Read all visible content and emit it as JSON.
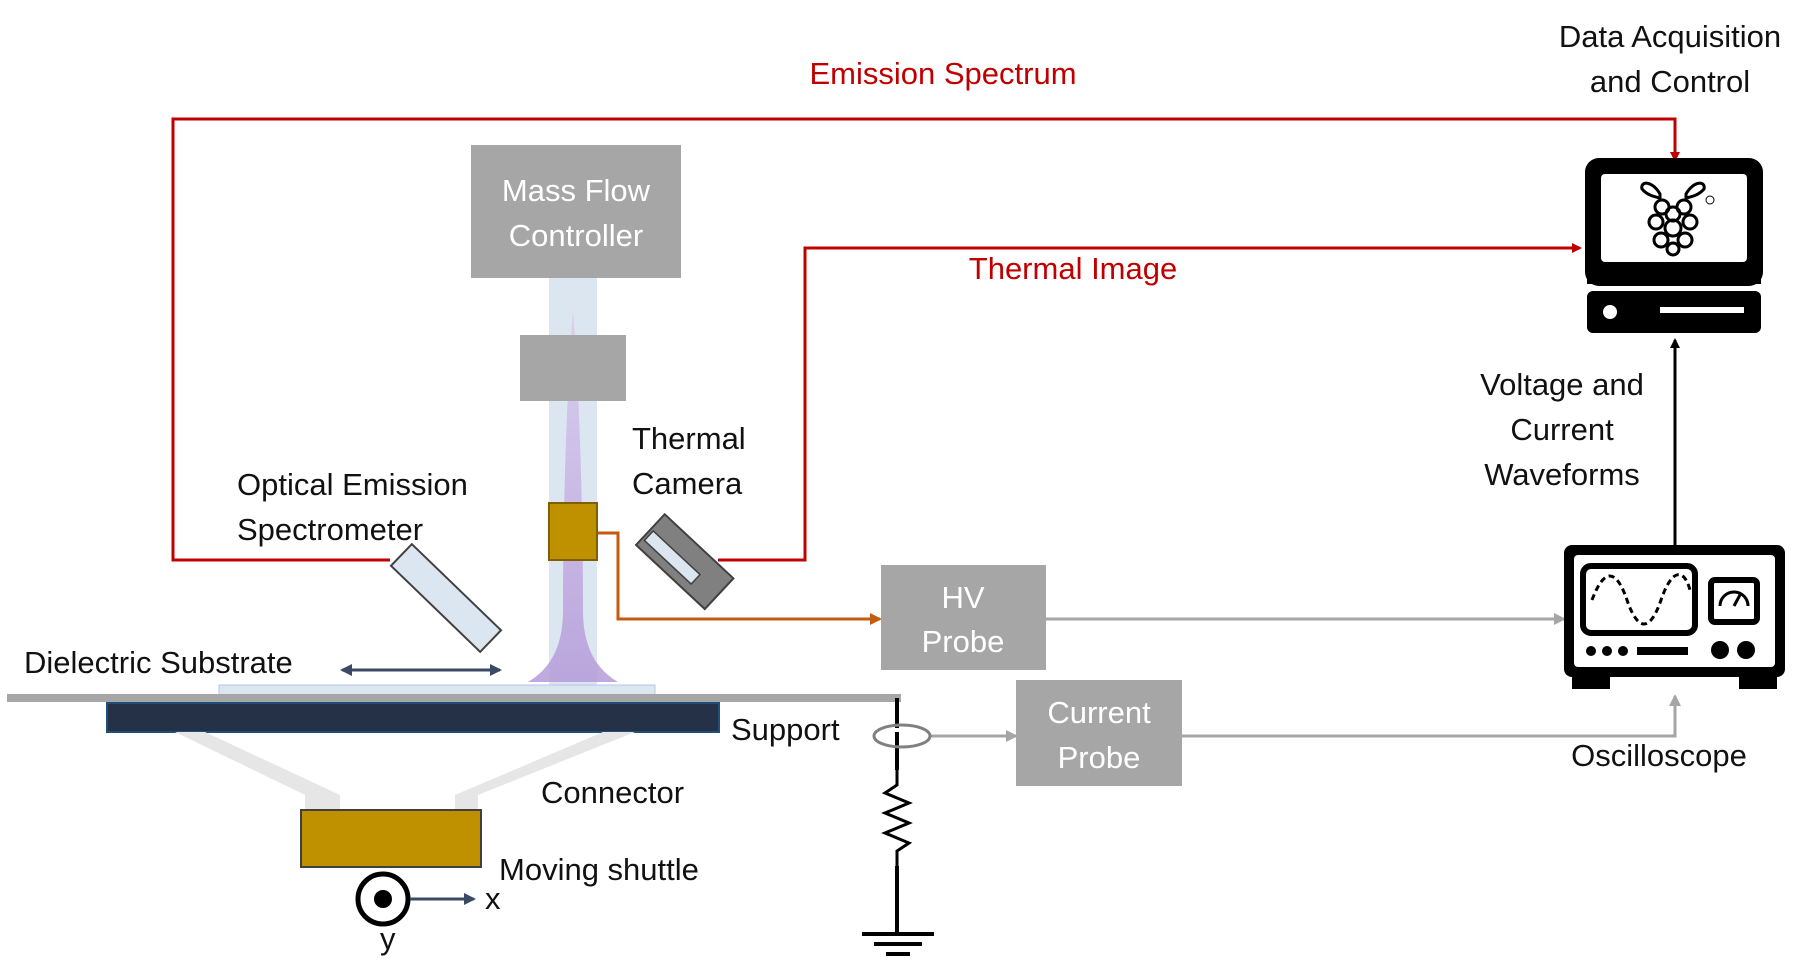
{
  "colors": {
    "signal_red": "#c00000",
    "orange": "#c55a11",
    "gray_box": "#a6a6a6",
    "gold": "#bf9000",
    "navy": "#2b3a55",
    "plasma": "#b79fdb",
    "arrow_gray": "#a6a6a6",
    "black": "#000000"
  },
  "labels": {
    "data_acq_line1": "Data Acquisition",
    "data_acq_line2": "and Control",
    "emission_spectrum": "Emission Spectrum",
    "thermal_image": "Thermal Image",
    "mass_flow_line1": "Mass Flow",
    "mass_flow_line2": "Controller",
    "thermal_camera_line1": "Thermal",
    "thermal_camera_line2": "Camera",
    "oes_line1": "Optical Emission",
    "oes_line2": "Spectrometer",
    "dielectric_substrate": "Dielectric Substrate",
    "hv_probe_line1": "HV",
    "hv_probe_line2": "Probe",
    "current_probe_line1": "Current",
    "current_probe_line2": "Probe",
    "support": "Support",
    "connector": "Connector",
    "moving_shuttle": "Moving shuttle",
    "axis_x": "x",
    "axis_y": "y",
    "vc_line1": "Voltage and",
    "vc_line2": "Current",
    "vc_line3": "Waveforms",
    "oscilloscope": "Oscilloscope"
  },
  "icons": {
    "computer": "raspberry-pi-computer-icon",
    "oscilloscope": "oscilloscope-icon",
    "ground": "ground-symbol-icon",
    "resistor": "resistor-icon"
  }
}
